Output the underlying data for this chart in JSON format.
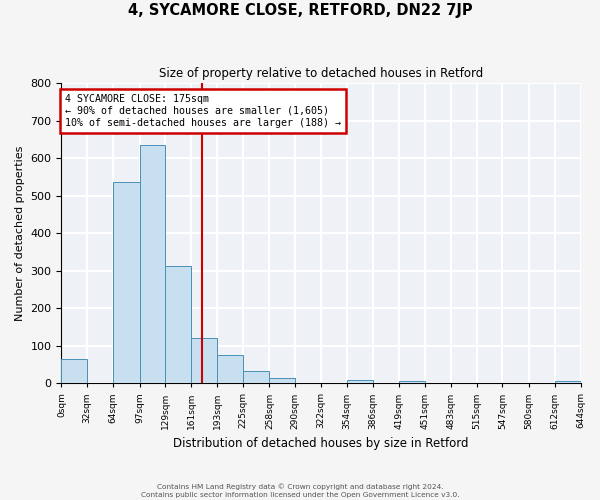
{
  "title": "4, SYCAMORE CLOSE, RETFORD, DN22 7JP",
  "subtitle": "Size of property relative to detached houses in Retford",
  "xlabel": "Distribution of detached houses by size in Retford",
  "ylabel": "Number of detached properties",
  "bar_color": "#c8dff0",
  "bar_edge_color": "#4a90b8",
  "bin_edges": [
    0,
    32,
    64,
    97,
    129,
    161,
    193,
    225,
    258,
    290,
    322,
    354,
    386,
    419,
    451,
    483,
    515,
    547,
    580,
    612,
    644
  ],
  "bar_heights": [
    65,
    0,
    535,
    635,
    313,
    120,
    75,
    33,
    13,
    0,
    0,
    8,
    0,
    5,
    0,
    0,
    0,
    0,
    0,
    5
  ],
  "tick_labels": [
    "0sqm",
    "32sqm",
    "64sqm",
    "97sqm",
    "129sqm",
    "161sqm",
    "193sqm",
    "225sqm",
    "258sqm",
    "290sqm",
    "322sqm",
    "354sqm",
    "386sqm",
    "419sqm",
    "451sqm",
    "483sqm",
    "515sqm",
    "547sqm",
    "580sqm",
    "612sqm",
    "644sqm"
  ],
  "vline_x": 175,
  "vline_color": "#cc0000",
  "annotation_line1": "4 SYCAMORE CLOSE: 175sqm",
  "annotation_line2": "← 90% of detached houses are smaller (1,605)",
  "annotation_line3": "10% of semi-detached houses are larger (188) →",
  "annotation_box_color": "#cc0000",
  "ylim": [
    0,
    800
  ],
  "yticks": [
    0,
    100,
    200,
    300,
    400,
    500,
    600,
    700,
    800
  ],
  "background_color": "#eef2f6",
  "grid_color": "#ffffff",
  "footer_line1": "Contains HM Land Registry data © Crown copyright and database right 2024.",
  "footer_line2": "Contains public sector information licensed under the Open Government Licence v3.0."
}
